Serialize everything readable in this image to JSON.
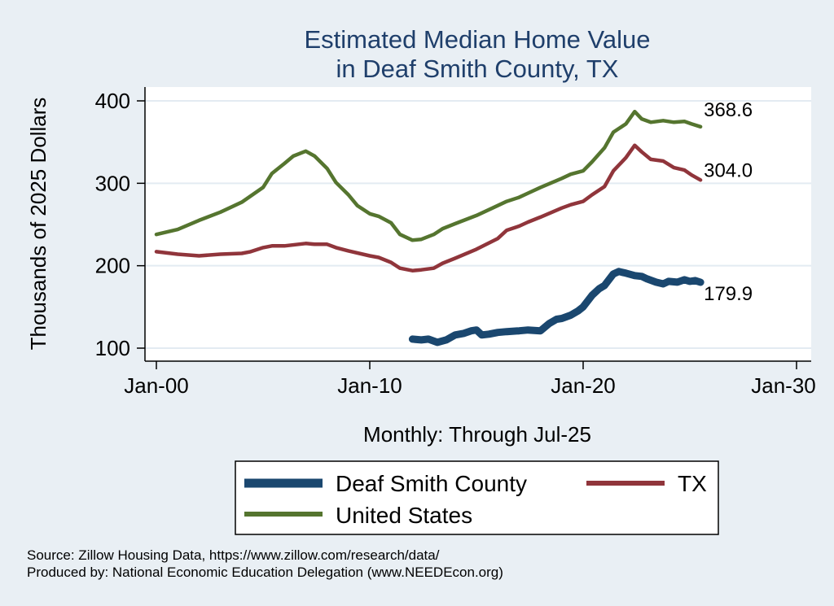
{
  "chart_data": {
    "type": "line",
    "title": [
      "Estimated Median Home Value",
      "in Deaf Smith County, TX"
    ],
    "ylabel": "Thousands of 2025 Dollars",
    "xlabel": "Monthly: Through Jul-25",
    "ylim": [
      100,
      400
    ],
    "yticks": [
      100,
      200,
      300,
      400
    ],
    "xlim": [
      "2000-01",
      "2030-01"
    ],
    "xticks": [
      {
        "date": "2000-01",
        "label": "Jan-00"
      },
      {
        "date": "2010-01",
        "label": "Jan-10"
      },
      {
        "date": "2020-01",
        "label": "Jan-20"
      },
      {
        "date": "2030-01",
        "label": "Jan-30"
      }
    ],
    "grid": true,
    "legend": "bottom",
    "series": [
      {
        "name": "Deaf Smith County",
        "color": "#1a476f",
        "end_label": "179.9",
        "points": [
          [
            "2012-01",
            111
          ],
          [
            "2012-06",
            110
          ],
          [
            "2012-10",
            111
          ],
          [
            "2013-03",
            107
          ],
          [
            "2013-08",
            110
          ],
          [
            "2014-01",
            116
          ],
          [
            "2014-06",
            118
          ],
          [
            "2014-10",
            121
          ],
          [
            "2015-01",
            122
          ],
          [
            "2015-04",
            116
          ],
          [
            "2015-08",
            117
          ],
          [
            "2016-01",
            119
          ],
          [
            "2016-06",
            120
          ],
          [
            "2017-01",
            121
          ],
          [
            "2017-06",
            122
          ],
          [
            "2018-01",
            121
          ],
          [
            "2018-06",
            130
          ],
          [
            "2018-10",
            135
          ],
          [
            "2019-01",
            136
          ],
          [
            "2019-06",
            140
          ],
          [
            "2019-10",
            145
          ],
          [
            "2020-01",
            150
          ],
          [
            "2020-06",
            164
          ],
          [
            "2020-10",
            172
          ],
          [
            "2021-01",
            176
          ],
          [
            "2021-06",
            190
          ],
          [
            "2021-09",
            193
          ],
          [
            "2022-01",
            191
          ],
          [
            "2022-06",
            188
          ],
          [
            "2022-10",
            187
          ],
          [
            "2023-01",
            184
          ],
          [
            "2023-06",
            180
          ],
          [
            "2023-10",
            178
          ],
          [
            "2024-01",
            181
          ],
          [
            "2024-06",
            180
          ],
          [
            "2024-10",
            183
          ],
          [
            "2025-01",
            181
          ],
          [
            "2025-04",
            182
          ],
          [
            "2025-07",
            179.9
          ]
        ]
      },
      {
        "name": "TX",
        "color": "#90353b",
        "end_label": "304.0",
        "points": [
          [
            "2000-01",
            217
          ],
          [
            "2001-01",
            214
          ],
          [
            "2002-01",
            212
          ],
          [
            "2003-01",
            214
          ],
          [
            "2004-01",
            215
          ],
          [
            "2004-06",
            217
          ],
          [
            "2005-01",
            222
          ],
          [
            "2005-06",
            224
          ],
          [
            "2006-01",
            224
          ],
          [
            "2007-01",
            227
          ],
          [
            "2007-06",
            226
          ],
          [
            "2008-01",
            226
          ],
          [
            "2008-06",
            222
          ],
          [
            "2009-01",
            218
          ],
          [
            "2010-01",
            212
          ],
          [
            "2010-06",
            210
          ],
          [
            "2011-01",
            204
          ],
          [
            "2011-06",
            197
          ],
          [
            "2012-01",
            194
          ],
          [
            "2012-06",
            195
          ],
          [
            "2013-01",
            197
          ],
          [
            "2013-06",
            203
          ],
          [
            "2014-01",
            209
          ],
          [
            "2015-01",
            220
          ],
          [
            "2016-01",
            233
          ],
          [
            "2016-06",
            243
          ],
          [
            "2017-01",
            248
          ],
          [
            "2017-06",
            253
          ],
          [
            "2018-01",
            259
          ],
          [
            "2019-01",
            270
          ],
          [
            "2019-06",
            274
          ],
          [
            "2020-01",
            278
          ],
          [
            "2020-06",
            286
          ],
          [
            "2021-01",
            296
          ],
          [
            "2021-06",
            315
          ],
          [
            "2022-01",
            331
          ],
          [
            "2022-06",
            346
          ],
          [
            "2022-10",
            338
          ],
          [
            "2023-03",
            329
          ],
          [
            "2023-10",
            327
          ],
          [
            "2024-04",
            319
          ],
          [
            "2024-10",
            316
          ],
          [
            "2025-02",
            310
          ],
          [
            "2025-07",
            304.0
          ]
        ]
      },
      {
        "name": "United States",
        "color": "#55752f",
        "end_label": "368.6",
        "points": [
          [
            "2000-01",
            238
          ],
          [
            "2001-01",
            244
          ],
          [
            "2002-01",
            255
          ],
          [
            "2003-01",
            265
          ],
          [
            "2004-01",
            277
          ],
          [
            "2005-01",
            295
          ],
          [
            "2005-06",
            312
          ],
          [
            "2006-01",
            324
          ],
          [
            "2006-06",
            333
          ],
          [
            "2007-01",
            339
          ],
          [
            "2007-06",
            333
          ],
          [
            "2008-01",
            318
          ],
          [
            "2008-06",
            301
          ],
          [
            "2009-01",
            286
          ],
          [
            "2009-06",
            273
          ],
          [
            "2010-01",
            263
          ],
          [
            "2010-06",
            260
          ],
          [
            "2011-01",
            252
          ],
          [
            "2011-06",
            238
          ],
          [
            "2012-01",
            231
          ],
          [
            "2012-06",
            232
          ],
          [
            "2013-01",
            238
          ],
          [
            "2013-06",
            245
          ],
          [
            "2014-01",
            251
          ],
          [
            "2015-01",
            261
          ],
          [
            "2016-01",
            273
          ],
          [
            "2016-06",
            278
          ],
          [
            "2017-01",
            283
          ],
          [
            "2017-06",
            288
          ],
          [
            "2018-01",
            295
          ],
          [
            "2019-01",
            306
          ],
          [
            "2019-06",
            311
          ],
          [
            "2020-01",
            315
          ],
          [
            "2020-06",
            326
          ],
          [
            "2021-01",
            343
          ],
          [
            "2021-06",
            362
          ],
          [
            "2022-01",
            372
          ],
          [
            "2022-06",
            387
          ],
          [
            "2022-10",
            378
          ],
          [
            "2023-03",
            374
          ],
          [
            "2023-10",
            376
          ],
          [
            "2024-04",
            374
          ],
          [
            "2024-10",
            375
          ],
          [
            "2025-02",
            372
          ],
          [
            "2025-07",
            368.6
          ]
        ]
      }
    ]
  },
  "footer": {
    "source": "Source: Zillow Housing Data, https://www.zillow.com/research/data/",
    "produced": "Produced by: National Economic Education Delegation (www.NEEDEcon.org)"
  }
}
